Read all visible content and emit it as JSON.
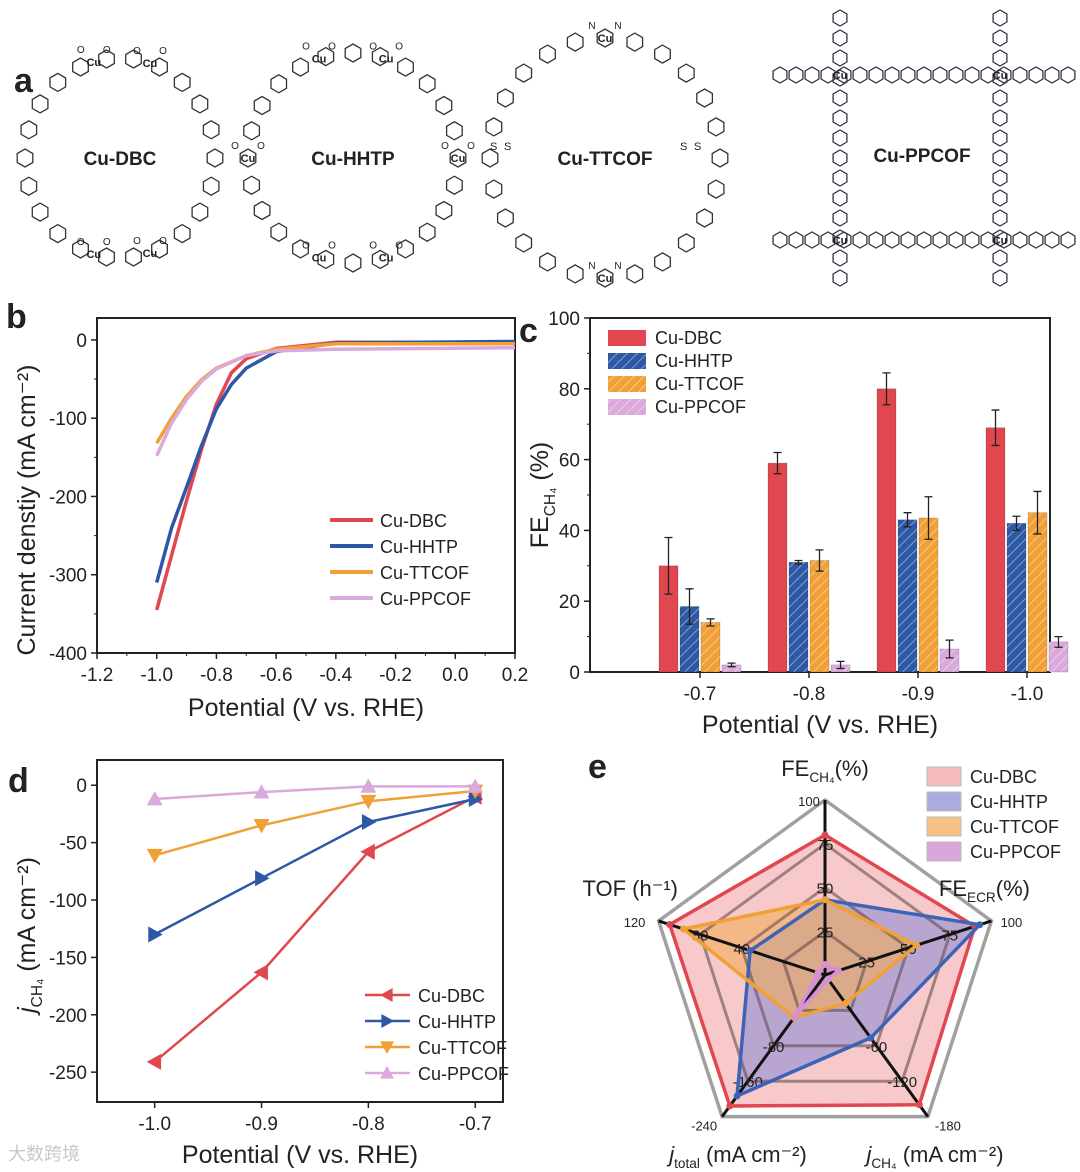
{
  "colors": {
    "dbc": "#e0474e",
    "hhtp": "#2d58a6",
    "ttcof": "#f0a035",
    "ppcof": "#dba9dc",
    "ring": "#999999",
    "cu": "#e07a1a",
    "o": "#d63a3a",
    "n": "#2d58a6"
  },
  "panel_a": {
    "label": "a",
    "structures": [
      {
        "name": "Cu-DBC",
        "atom_cu": "Cu",
        "atom_o": "O"
      },
      {
        "name": "Cu-HHTP",
        "atom_cu": "Cu",
        "atom_o": "O"
      },
      {
        "name": "Cu-TTCOF",
        "atom_cu": "Cu",
        "atom_n": "N",
        "atom_s": "S"
      },
      {
        "name": "Cu-PPCOF",
        "atom_cu": "Cu",
        "atom_n": "N"
      }
    ]
  },
  "watermark": "大数跨境",
  "chart_data": [
    {
      "panel": "b",
      "type": "line",
      "xlabel": "Potential (V vs. RHE)",
      "ylabel": "Current denstiy (mA cm⁻²)",
      "xlim": [
        -1.2,
        0.2
      ],
      "ylim": [
        -400,
        28
      ],
      "xticks": [
        "-1.2",
        "-1.0",
        "-0.8",
        "-0.6",
        "-0.4",
        "-0.2",
        "0.0",
        "0.2"
      ],
      "yticks": [
        "0",
        "-100",
        "-200",
        "-300",
        "-400"
      ],
      "legend": "center-right",
      "series": [
        {
          "name": "Cu-DBC",
          "color": "#e0474e",
          "x": [
            -1.0,
            -0.95,
            -0.9,
            -0.85,
            -0.8,
            -0.75,
            -0.7,
            -0.6,
            -0.4,
            0.2
          ],
          "y": [
            -345,
            -275,
            -205,
            -140,
            -82,
            -42,
            -24,
            -11,
            -3,
            -3
          ]
        },
        {
          "name": "Cu-HHTP",
          "color": "#2d58a6",
          "x": [
            -1.0,
            -0.95,
            -0.9,
            -0.85,
            -0.8,
            -0.75,
            -0.7,
            -0.6,
            -0.4,
            0.2
          ],
          "y": [
            -310,
            -240,
            -188,
            -135,
            -88,
            -57,
            -36,
            -15,
            -4,
            -2
          ]
        },
        {
          "name": "Cu-TTCOF",
          "color": "#f0a035",
          "x": [
            -1.0,
            -0.95,
            -0.9,
            -0.85,
            -0.8,
            -0.7,
            -0.6,
            -0.4,
            0.2
          ],
          "y": [
            -132,
            -100,
            -72,
            -51,
            -36,
            -20,
            -12,
            -5,
            -5
          ]
        },
        {
          "name": "Cu-PPCOF",
          "color": "#dba9dc",
          "x": [
            -1.0,
            -0.95,
            -0.9,
            -0.85,
            -0.8,
            -0.7,
            -0.6,
            -0.4,
            0.2
          ],
          "y": [
            -148,
            -106,
            -76,
            -53,
            -37,
            -20,
            -14,
            -12,
            -10
          ]
        }
      ]
    },
    {
      "panel": "c",
      "type": "bar",
      "xlabel": "Potential (V vs. RHE)",
      "ylabel": {
        "main": "FE",
        "sub": "CH₄",
        "rest": " (%)"
      },
      "categories": [
        "-0.7",
        "-0.8",
        "-0.9",
        "-1.0"
      ],
      "ylim": [
        0,
        100
      ],
      "yticks": [
        "0",
        "20",
        "40",
        "60",
        "80",
        "100"
      ],
      "legend": "top-left",
      "series": [
        {
          "name": "Cu-DBC",
          "color": "#e0474e",
          "hatch": false,
          "values": [
            30,
            59,
            80,
            69
          ],
          "errors": [
            8,
            3,
            4.5,
            5
          ]
        },
        {
          "name": "Cu-HHTP",
          "color": "#2d58a6",
          "hatch": true,
          "values": [
            18.5,
            31,
            43,
            42
          ],
          "errors": [
            5,
            0.5,
            2,
            2
          ]
        },
        {
          "name": "Cu-TTCOF",
          "color": "#f0a035",
          "hatch": true,
          "values": [
            14,
            31.5,
            43.5,
            45
          ],
          "errors": [
            1,
            3,
            6,
            6
          ]
        },
        {
          "name": "Cu-PPCOF",
          "color": "#dba9dc",
          "hatch": true,
          "values": [
            2,
            2,
            6.5,
            8.5
          ],
          "errors": [
            0.5,
            1,
            2.5,
            1.5
          ]
        }
      ]
    },
    {
      "panel": "d",
      "type": "line",
      "xlabel": "Potential (V vs. RHE)",
      "ylabel": {
        "main": "j",
        "sub": "CH₄",
        "rest": " (mA cm⁻²)"
      },
      "xlim": [
        -1.054,
        -0.674
      ],
      "ylim": [
        -276,
        22
      ],
      "xticks": [
        "-1.0",
        "-0.9",
        "-0.8",
        "-0.7"
      ],
      "xtick_values": [
        -1.0,
        -0.9,
        -0.8,
        -0.7
      ],
      "yticks": [
        "0",
        "-50",
        "-100",
        "-150",
        "-200",
        "-250"
      ],
      "legend": "bottom-right",
      "series": [
        {
          "name": "Cu-DBC",
          "color": "#e0474e",
          "marker": "triangle-left",
          "x": [
            -1.0,
            -0.9,
            -0.8,
            -0.7
          ],
          "y": [
            -241,
            -163,
            -58,
            -10
          ]
        },
        {
          "name": "Cu-HHTP",
          "color": "#2d58a6",
          "marker": "triangle-right",
          "x": [
            -1.0,
            -0.9,
            -0.8,
            -0.7
          ],
          "y": [
            -130,
            -81,
            -32,
            -12
          ]
        },
        {
          "name": "Cu-TTCOF",
          "color": "#f0a035",
          "marker": "triangle-down",
          "x": [
            -1.0,
            -0.9,
            -0.8,
            -0.7
          ],
          "y": [
            -61,
            -35,
            -14,
            -5
          ]
        },
        {
          "name": "Cu-PPCOF",
          "color": "#dba9dc",
          "marker": "triangle-up",
          "x": [
            -1.0,
            -0.9,
            -0.8,
            -0.7
          ],
          "y": [
            -12,
            -6,
            -1,
            -1
          ]
        }
      ]
    },
    {
      "panel": "e",
      "type": "radar",
      "axes": [
        {
          "label": {
            "main": "FE",
            "sub": "CH₄",
            "rest": "(%)"
          },
          "max": 100,
          "ticks": [
            "25",
            "50",
            "75",
            "100"
          ]
        },
        {
          "label": {
            "main": "FE",
            "sub": "ECR",
            "rest": "(%)"
          },
          "max": 100,
          "ticks": [
            "25",
            "50",
            "75",
            "100"
          ]
        },
        {
          "label": {
            "main": "j",
            "sub": "CH₄",
            "rest": " (mA cm⁻²)"
          },
          "max": -180,
          "ticks": [
            "",
            "-60",
            "-120",
            "-180"
          ]
        },
        {
          "label": {
            "main": "j",
            "sub": "total",
            "rest": " (mA cm⁻²)"
          },
          "max": -240,
          "ticks": [
            "",
            "-80",
            "-160",
            "-240"
          ]
        },
        {
          "label": {
            "main": "TOF (h⁻¹)",
            "sub": "",
            "rest": ""
          },
          "max": 120,
          "ticks": [
            "",
            "40",
            "80",
            "120"
          ]
        }
      ],
      "legend": "top-right",
      "series": [
        {
          "name": "Cu-DBC",
          "line": "#e0474e",
          "fill": "#f2a5a8",
          "values": [
            80,
            90,
            -165,
            -222,
            112
          ]
        },
        {
          "name": "Cu-HHTP",
          "line": "#3b63b8",
          "fill": "#8d8fd6",
          "values": [
            43,
            93,
            -80,
            -205,
            54
          ]
        },
        {
          "name": "Cu-TTCOF",
          "line": "#f0a035",
          "fill": "#f2ae5a",
          "values": [
            43,
            55,
            -36,
            -72,
            102
          ]
        },
        {
          "name": "Cu-PPCOF",
          "line": "#d690d8",
          "fill": "#cc88cc",
          "values": [
            6,
            8,
            -2,
            -70,
            5
          ]
        }
      ]
    }
  ]
}
